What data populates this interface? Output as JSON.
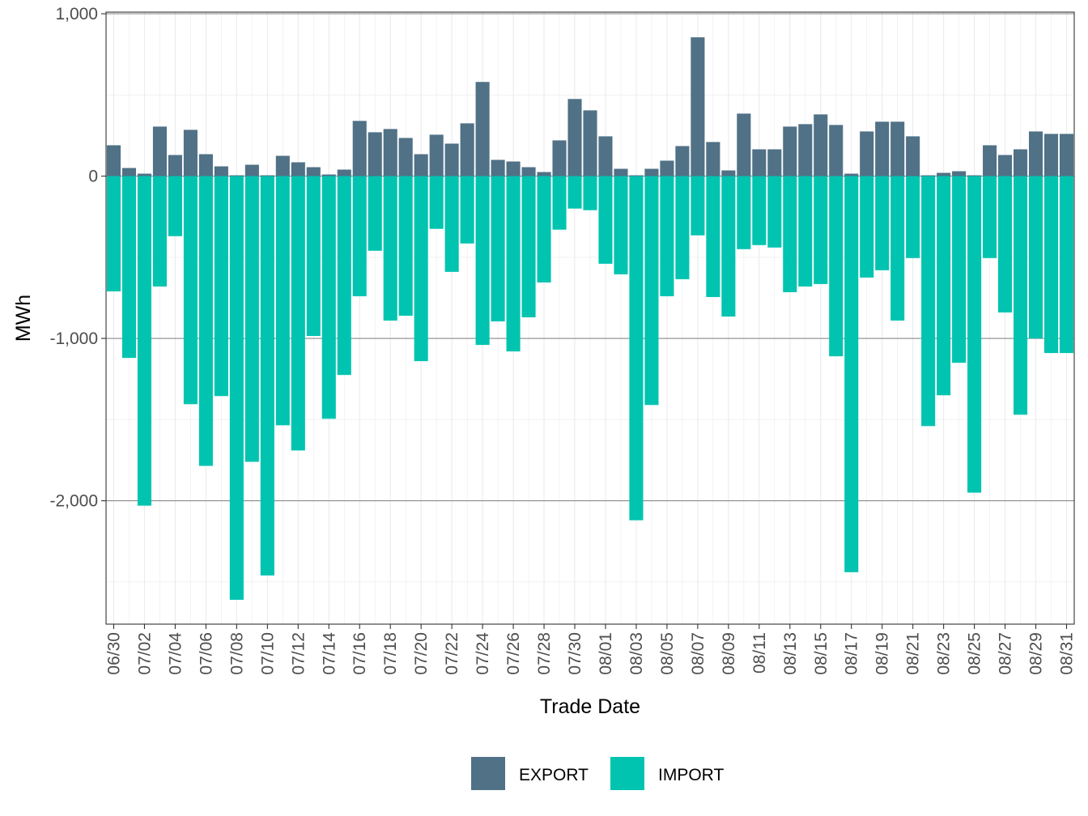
{
  "chart_data": {
    "type": "bar",
    "stacked": true,
    "title": "",
    "xlabel": "Trade Date",
    "ylabel": "MWh",
    "ylim": [
      -2760,
      1010
    ],
    "yticks": [
      1000,
      0,
      -1000,
      -2000
    ],
    "ytick_labels": [
      "1,000",
      "0",
      "-1,000",
      "-2,000"
    ],
    "grid": true,
    "legend_position": "bottom",
    "categories": [
      "06/30",
      "07/01",
      "07/02",
      "07/03",
      "07/04",
      "07/05",
      "07/06",
      "07/07",
      "07/08",
      "07/09",
      "07/10",
      "07/11",
      "07/12",
      "07/13",
      "07/14",
      "07/15",
      "07/16",
      "07/17",
      "07/18",
      "07/19",
      "07/20",
      "07/21",
      "07/22",
      "07/23",
      "07/24",
      "07/25",
      "07/26",
      "07/27",
      "07/28",
      "07/29",
      "07/30",
      "07/31",
      "08/01",
      "08/02",
      "08/03",
      "08/04",
      "08/05",
      "08/06",
      "08/07",
      "08/08",
      "08/09",
      "08/10",
      "08/11",
      "08/12",
      "08/13",
      "08/14",
      "08/15",
      "08/16",
      "08/17",
      "08/18",
      "08/19",
      "08/20",
      "08/21",
      "08/22",
      "08/23",
      "08/24",
      "08/25",
      "08/26",
      "08/27",
      "08/28",
      "08/29",
      "08/30",
      "08/31"
    ],
    "x_tick_labels": [
      "06/30",
      "07/02",
      "07/04",
      "07/06",
      "07/08",
      "07/10",
      "07/12",
      "07/14",
      "07/16",
      "07/18",
      "07/20",
      "07/22",
      "07/24",
      "07/26",
      "07/28",
      "07/30",
      "08/01",
      "08/03",
      "08/05",
      "08/07",
      "08/09",
      "08/11",
      "08/13",
      "08/15",
      "08/17",
      "08/19",
      "08/21",
      "08/23",
      "08/25",
      "08/27",
      "08/29",
      "08/31"
    ],
    "series": [
      {
        "name": "EXPORT",
        "color": "#507186",
        "values": [
          190,
          50,
          15,
          305,
          130,
          285,
          135,
          60,
          5,
          70,
          5,
          125,
          85,
          55,
          10,
          40,
          340,
          270,
          290,
          235,
          135,
          255,
          200,
          325,
          580,
          100,
          90,
          55,
          25,
          220,
          475,
          405,
          245,
          45,
          5,
          45,
          95,
          185,
          855,
          210,
          35,
          385,
          165,
          165,
          305,
          320,
          380,
          315,
          15,
          275,
          335,
          335,
          245,
          5,
          20,
          30,
          5,
          190,
          130,
          165,
          275,
          260,
          260
        ]
      },
      {
        "name": "IMPORT",
        "color": "#00C4B0",
        "values": [
          -710,
          -1120,
          -2030,
          -680,
          -370,
          -1405,
          -1785,
          -1355,
          -2610,
          -1760,
          -2460,
          -1535,
          -1690,
          -985,
          -1495,
          -1225,
          -740,
          -460,
          -890,
          -860,
          -1140,
          -325,
          -590,
          -415,
          -1040,
          -895,
          -1080,
          -870,
          -655,
          -330,
          -200,
          -210,
          -540,
          -605,
          -2120,
          -1410,
          -740,
          -635,
          -365,
          -745,
          -865,
          -450,
          -425,
          -440,
          -715,
          -680,
          -665,
          -1110,
          -2440,
          -625,
          -580,
          -890,
          -505,
          -1540,
          -1350,
          -1150,
          -1950,
          -505,
          -840,
          -1470,
          -1000,
          -1090,
          -1090
        ]
      }
    ]
  }
}
